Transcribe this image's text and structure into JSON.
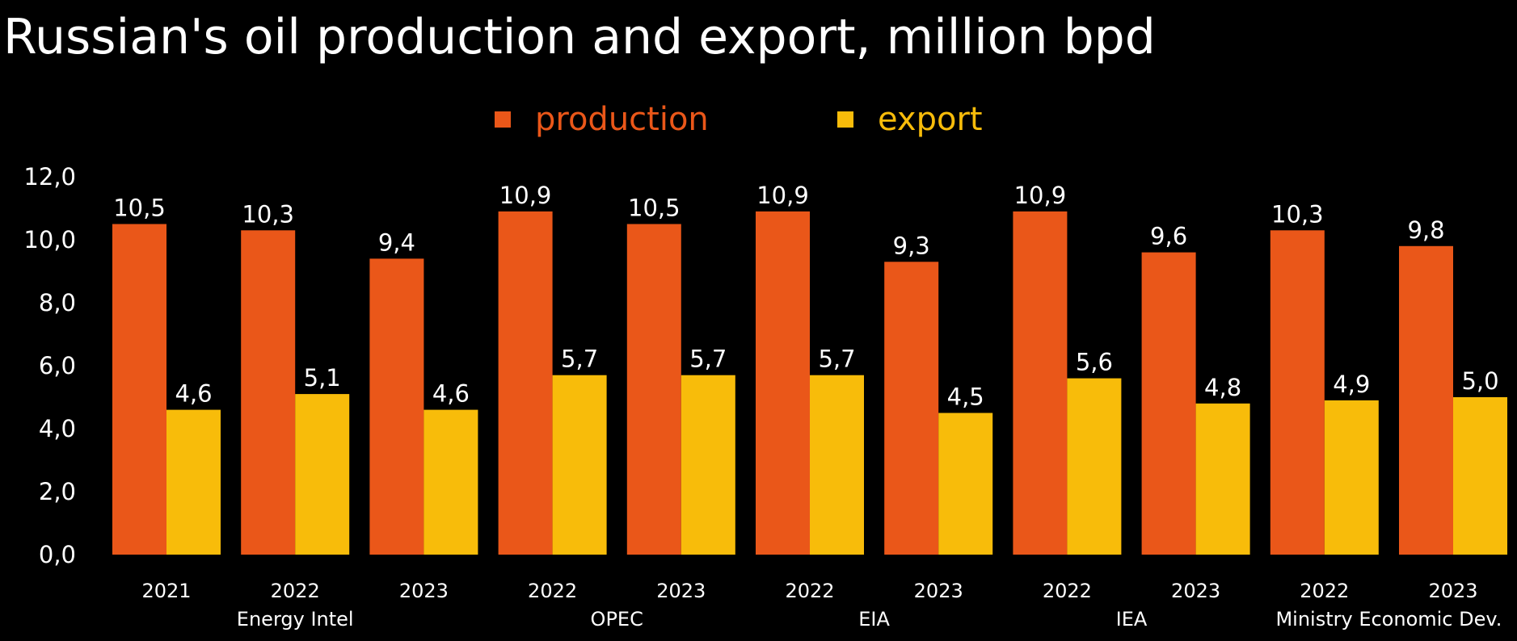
{
  "chart_data": {
    "type": "bar",
    "title": "Russian's oil production and export, million bpd",
    "xlabel": "",
    "ylabel": "",
    "ylim": [
      0,
      12
    ],
    "yticks": [
      "0,0",
      "2,0",
      "4,0",
      "6,0",
      "8,0",
      "10,0",
      "12,0"
    ],
    "ytick_values": [
      0,
      2,
      4,
      6,
      8,
      10,
      12
    ],
    "legend_position": "top-center",
    "grid": false,
    "categories": [
      {
        "label": "2021",
        "group": "Energy Intel"
      },
      {
        "label": "2022",
        "group": "Energy Intel"
      },
      {
        "label": "2023",
        "group": "Energy Intel"
      },
      {
        "label": "2022",
        "group": "OPEC"
      },
      {
        "label": "2023",
        "group": "OPEC"
      },
      {
        "label": "2022",
        "group": "EIA"
      },
      {
        "label": "2023",
        "group": "EIA"
      },
      {
        "label": "2022",
        "group": "IEA"
      },
      {
        "label": "2023",
        "group": "IEA"
      },
      {
        "label": "2022",
        "group": "Ministry Economic Dev."
      },
      {
        "label": "2023",
        "group": "Ministry Economic Dev."
      }
    ],
    "groups": [
      "Energy Intel",
      "OPEC",
      "EIA",
      "IEA",
      "Ministry Economic Dev."
    ],
    "series": [
      {
        "name": "production",
        "color": "#EA5719",
        "values": [
          10.5,
          10.3,
          9.4,
          10.9,
          10.5,
          10.9,
          9.3,
          10.9,
          9.6,
          10.3,
          9.8
        ],
        "labels": [
          "10,5",
          "10,3",
          "9,4",
          "10,9",
          "10,5",
          "10,9",
          "9,3",
          "10,9",
          "9,6",
          "10,3",
          "9,8"
        ]
      },
      {
        "name": "export",
        "color": "#F8BC0A",
        "values": [
          4.6,
          5.1,
          4.6,
          5.7,
          5.7,
          5.7,
          4.5,
          5.6,
          4.8,
          4.9,
          5.0
        ],
        "labels": [
          "4,6",
          "5,1",
          "4,6",
          "5,7",
          "5,7",
          "5,7",
          "4,5",
          "5,6",
          "4,8",
          "4,9",
          "5,0"
        ]
      }
    ]
  }
}
